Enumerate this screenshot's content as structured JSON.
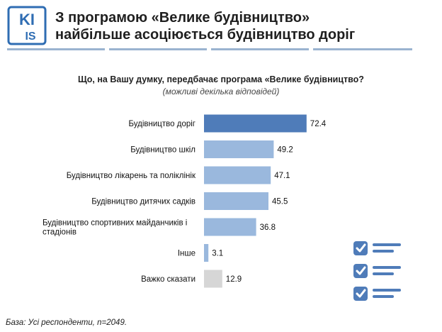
{
  "logo": {
    "text_top": "KI",
    "text_bottom": "IS",
    "name": "KIIS logo"
  },
  "header": {
    "title_line1": "З програмою «Велике будівництво»",
    "title_line2": "найбільше асоціюється будівництво доріг"
  },
  "colors": {
    "highlight": "#4f7cb9",
    "standard": "#9ab8dd",
    "neutral": "#d6d6d6",
    "rule": "#9ab3d0"
  },
  "chart_data": {
    "type": "bar",
    "orientation": "horizontal",
    "title": "Що, на Вашу думку, передбачає програма «Велике будівництво?",
    "subtitle": "(можливі декілька відповідей)",
    "categories": [
      "Будівництво доріг",
      "Будівництво шкіл",
      "Будівництво лікарень та поліклінік",
      "Будівництво дитячих садків",
      "Будівництво спортивних майданчиків і стадіонів",
      "Інше",
      "Важко сказати"
    ],
    "label_lines": [
      [
        "Будівництво доріг"
      ],
      [
        "Будівництво шкіл"
      ],
      [
        "Будівництво лікарень та поліклінік"
      ],
      [
        "Будівництво дитячих садків"
      ],
      [
        "Будівництво спортивних майданчиків і",
        "стадіонів"
      ],
      [
        "Інше"
      ],
      [
        "Важко сказати"
      ]
    ],
    "values": [
      72.4,
      49.2,
      47.1,
      45.5,
      36.8,
      3.1,
      12.9
    ],
    "value_labels": [
      "72.4",
      "49.2",
      "47.1",
      "45.5",
      "36.8",
      "3.1",
      "12.9"
    ],
    "color_roles": [
      "highlight",
      "standard",
      "standard",
      "standard",
      "standard",
      "standard",
      "neutral"
    ],
    "xlim": [
      0,
      100
    ],
    "grid": false,
    "legend": "none"
  },
  "footnote": "База: Усі респонденти, n=2049."
}
